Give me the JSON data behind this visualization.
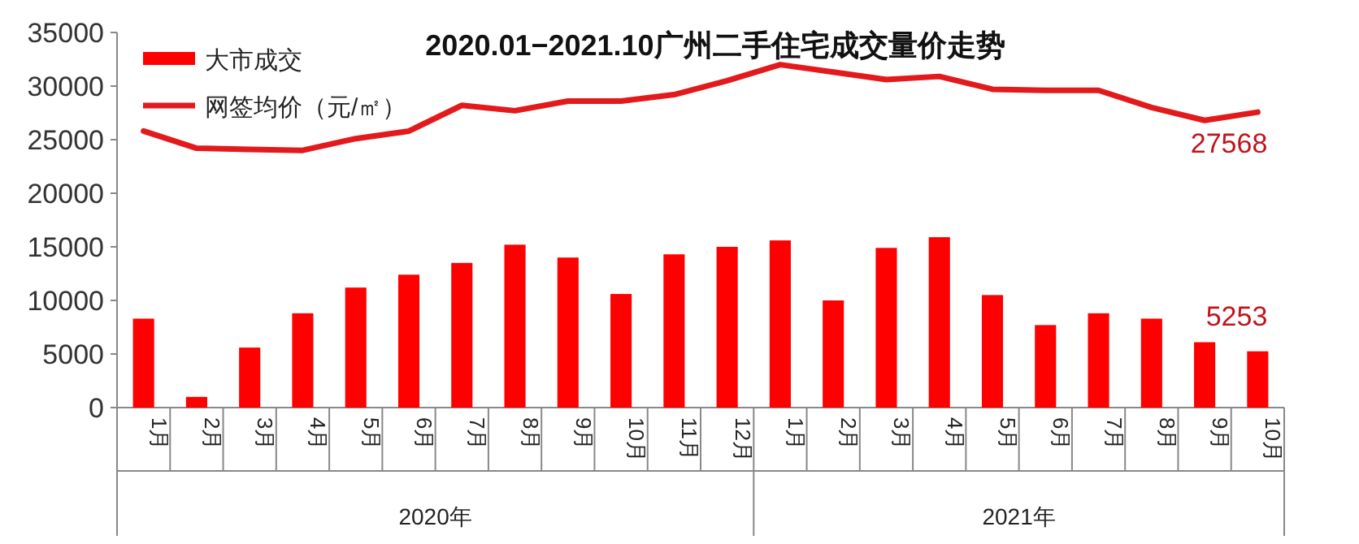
{
  "chart_data": {
    "type": "bar",
    "title": "2020.01−2021.10广州二手住宅成交量价走势",
    "categories": [
      "1月",
      "2月",
      "3月",
      "4月",
      "5月",
      "6月",
      "7月",
      "8月",
      "9月",
      "10月",
      "11月",
      "12月",
      "1月",
      "2月",
      "3月",
      "4月",
      "5月",
      "6月",
      "7月",
      "8月",
      "9月",
      "10月"
    ],
    "series": [
      {
        "name": "大市成交",
        "color": "#ff0000",
        "values": [
          8300,
          1000,
          5600,
          8800,
          11200,
          12400,
          13500,
          15200,
          14000,
          10600,
          14300,
          15000,
          15600,
          10000,
          14900,
          15900,
          10500,
          7700,
          8800,
          8300,
          6100,
          5253
        ],
        "value_labels": [
          null,
          null,
          null,
          null,
          null,
          null,
          null,
          null,
          null,
          null,
          null,
          null,
          null,
          null,
          null,
          null,
          null,
          null,
          null,
          null,
          null,
          "5253"
        ]
      },
      {
        "name": "网签均价（元/㎡）",
        "type": "line",
        "color": "#e31a1c",
        "values": [
          25800,
          24200,
          24100,
          24000,
          25100,
          25800,
          28200,
          27700,
          28600,
          28600,
          29200,
          30500,
          32000,
          31300,
          30600,
          30900,
          29700,
          29600,
          29600,
          28000,
          26800,
          27568
        ],
        "value_labels": [
          null,
          null,
          null,
          null,
          null,
          null,
          null,
          null,
          null,
          null,
          null,
          null,
          null,
          null,
          null,
          null,
          null,
          null,
          null,
          null,
          null,
          "27568"
        ]
      }
    ],
    "ylim": [
      0,
      35000
    ],
    "yticks": [
      0,
      5000,
      10000,
      15000,
      20000,
      25000,
      30000,
      35000
    ],
    "legend": "top left",
    "grid": false,
    "annotations": [
      "2020年",
      "2021年"
    ]
  }
}
